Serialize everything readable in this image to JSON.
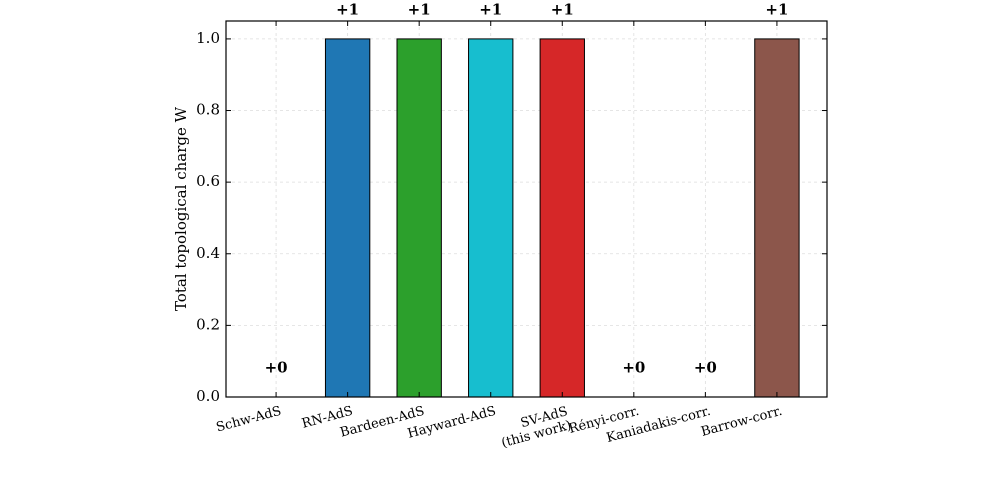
{
  "chart_data": {
    "type": "bar",
    "ylabel": "Total topological charge W",
    "categories": [
      "Schw-AdS",
      "RN-AdS",
      "Bardeen-AdS",
      "Hayward-AdS",
      "SV-AdS\n(this work)",
      "Rényi-corr.",
      "Kaniadakis-corr.",
      "Barrow-corr."
    ],
    "values": [
      0,
      1,
      1,
      1,
      1,
      0,
      0,
      1
    ],
    "value_labels": [
      "+0",
      "+1",
      "+1",
      "+1",
      "+1",
      "+0",
      "+0",
      "+1"
    ],
    "colors": [
      null,
      "#1f77b4",
      "#2ca02c",
      "#17becf",
      "#d62728",
      null,
      null,
      "#8c564b"
    ],
    "ylim": [
      0,
      1.05
    ],
    "yticks": [
      {
        "value": 0,
        "label": "0.0"
      },
      {
        "value": 0.2,
        "label": "0.2"
      },
      {
        "value": 0.4,
        "label": "0.4"
      },
      {
        "value": 0.6,
        "label": "0.6"
      },
      {
        "value": 0.8,
        "label": "0.8"
      },
      {
        "value": 1,
        "label": "1.0"
      }
    ],
    "grid": true
  }
}
